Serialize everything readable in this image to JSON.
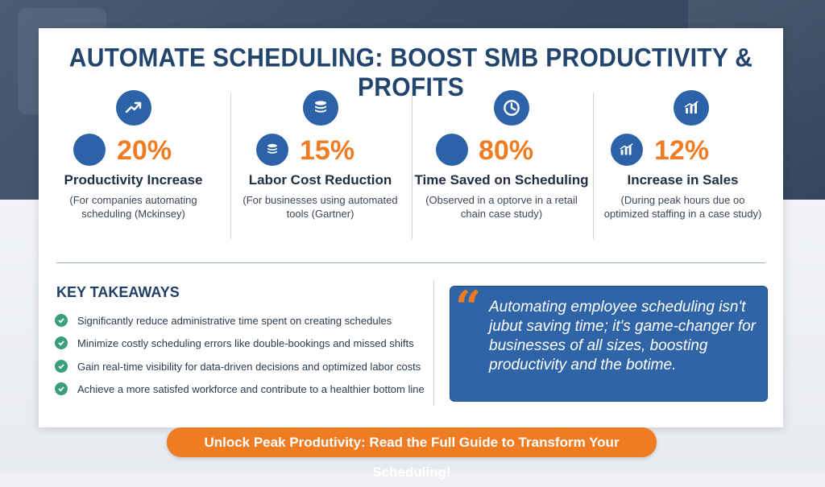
{
  "title": "AUTOMATE SCHEDULING: BOOST SMB PRODUCTIVITY & PROFITS",
  "stats": [
    {
      "value": "20%",
      "label": "Productivity Increase",
      "note": "(For companies automating scheduling (Mckinsey)",
      "icon": "trend-up-icon"
    },
    {
      "value": "15%",
      "label": "Labor Cost Reduction",
      "note": "(For businesses using automated tools (Gartner)",
      "icon": "coins-icon"
    },
    {
      "value": "80%",
      "label": "Time Saved on Scheduling",
      "note": "(Observed in a optorve in a retail chain case study)",
      "icon": "clock-icon"
    },
    {
      "value": "12%",
      "label": "Increase in Sales",
      "note": "(During peak hours due oo optimized staffing in a case study)",
      "icon": "bar-chart-icon"
    }
  ],
  "takeaways": {
    "title": "KEY TAKEAWAYS",
    "items": [
      "Significantly reduce administrative time spent on creating schedules",
      "Minimize costly scheduling errors like double-bookings and missed shifts",
      "Gain real-time visibility for data-driven decisions and optimized labor costs",
      "Achieve a more satisfed workforce and contribute to a healthier bottom line"
    ]
  },
  "quote": {
    "mark": "“",
    "text": "Automating employee scheduling isn't jubut saving time; it's game-changer for businesses of all sizes, boosting productivity and the botime."
  },
  "cta": "Unlock Peak Produtivity: Read the Full Guide to Transform Your Scheduling!",
  "colors": {
    "accent": "#ef7b22",
    "brand": "#2c62a8",
    "title": "#22456d",
    "check": "#3a9e7e"
  }
}
